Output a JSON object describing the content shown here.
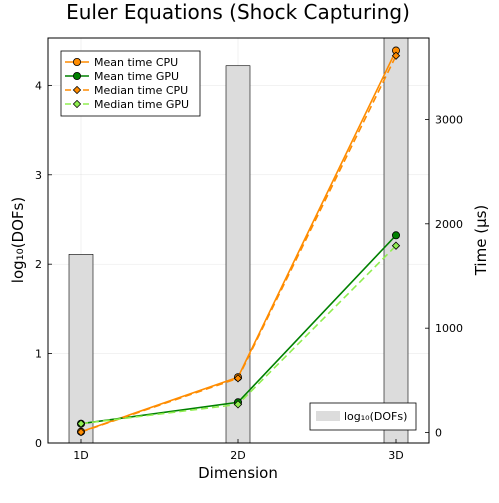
{
  "chart_data": {
    "type": "bar+line",
    "title": "Euler Equations (Shock Capturing)",
    "xlabel": "Dimension",
    "ylabel_left": "log₁₀(DOFs)",
    "ylabel_right": "Time (µs)",
    "categories": [
      "1D",
      "2D",
      "3D"
    ],
    "ylim_left": [
      0,
      4.53
    ],
    "yticks_left": [
      0,
      1,
      2,
      3,
      4
    ],
    "ylim_right": [
      -100,
      3780
    ],
    "yticks_right": [
      0,
      1000,
      2000,
      3000
    ],
    "grid": true,
    "bars": {
      "name": "log₁₀(DOFs)",
      "values": [
        2.11,
        4.22,
        4.53
      ],
      "color": "#dcdcdc",
      "legend": "bottom-right"
    },
    "series": [
      {
        "name": "Mean time CPU",
        "values": [
          8,
          530,
          3660
        ],
        "color": "#ff8c00",
        "marker": "circle",
        "dash": "solid"
      },
      {
        "name": "Mean time GPU",
        "values": [
          85,
          290,
          1890
        ],
        "color": "#008000",
        "marker": "circle",
        "dash": "solid"
      },
      {
        "name": "Median time CPU",
        "values": [
          5,
          520,
          3610
        ],
        "color": "#ff8c00",
        "marker": "diamond",
        "dash": "dashed"
      },
      {
        "name": "Median time GPU",
        "values": [
          85,
          270,
          1790
        ],
        "color": "#90ee50",
        "marker": "diamond",
        "dash": "dashed"
      }
    ],
    "series_legend": "top-left"
  }
}
